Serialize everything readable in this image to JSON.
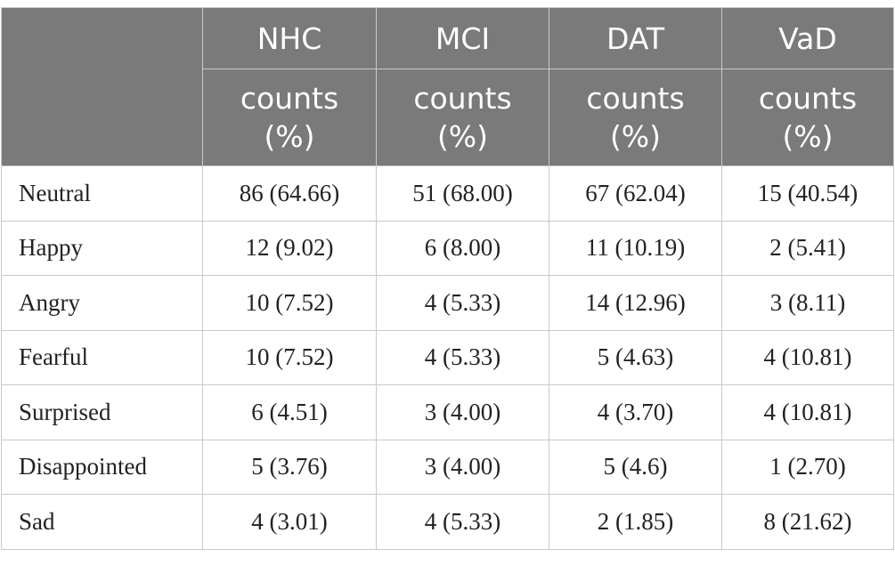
{
  "header": {
    "groups": [
      "NHC",
      "MCI",
      "DAT",
      "VaD"
    ],
    "subheader_line1": "counts",
    "subheader_line2": "(%)"
  },
  "rows": [
    {
      "label": "Neutral",
      "cells": [
        "86 (64.66)",
        "51 (68.00)",
        "67 (62.04)",
        "15 (40.54)"
      ]
    },
    {
      "label": "Happy",
      "cells": [
        "12 (9.02)",
        "6 (8.00)",
        "11 (10.19)",
        "2 (5.41)"
      ]
    },
    {
      "label": "Angry",
      "cells": [
        "10 (7.52)",
        "4 (5.33)",
        "14 (12.96)",
        "3 (8.11)"
      ]
    },
    {
      "label": "Fearful",
      "cells": [
        "10 (7.52)",
        "4 (5.33)",
        "5 (4.63)",
        "4 (10.81)"
      ]
    },
    {
      "label": "Surprised",
      "cells": [
        "6 (4.51)",
        "3 (4.00)",
        "4 (3.70)",
        "4 (10.81)"
      ]
    },
    {
      "label": "Disappointed",
      "cells": [
        "5 (3.76)",
        "3 (4.00)",
        "5 (4.6)",
        "1 (2.70)"
      ]
    },
    {
      "label": "Sad",
      "cells": [
        "4 (3.01)",
        "4 (5.33)",
        "2 (1.85)",
        "8 (21.62)"
      ]
    }
  ],
  "colors": {
    "header_bg": "#7a7a7a",
    "header_text": "#ffffff",
    "grid": "#c9c9c9",
    "body_text": "#222222"
  }
}
